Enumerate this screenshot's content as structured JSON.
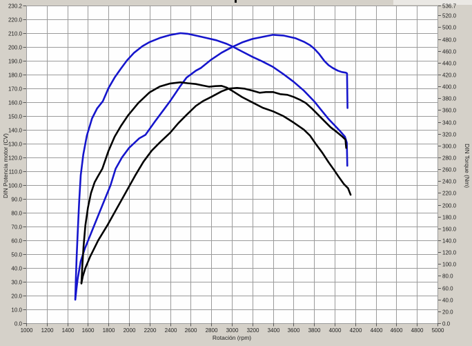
{
  "chart_data": {
    "type": "line",
    "title": "",
    "xlabel": "Rotación (rpm)",
    "ylabel_left": "DIN Potencia motor (CV)",
    "ylabel_right": "DIN Torque (Nm)",
    "x_range": [
      1000,
      5000
    ],
    "x_ticks": [
      1000,
      1200,
      1400,
      1600,
      1800,
      2000,
      2200,
      2400,
      2600,
      2800,
      3000,
      3200,
      3400,
      3600,
      3800,
      4000,
      4200,
      4400,
      4600,
      4800,
      5000
    ],
    "y_left_range": [
      0,
      230.2
    ],
    "y_left_ticks": [
      230.2,
      220,
      210,
      200,
      190,
      180,
      170,
      160,
      150,
      140,
      130,
      120,
      110,
      100,
      90,
      80,
      70,
      60,
      50,
      40,
      30,
      20,
      10,
      0
    ],
    "y_right_range": [
      0,
      536.7
    ],
    "y_right_ticks": [
      536.7,
      520,
      500,
      480,
      460,
      440,
      420,
      400,
      380,
      360,
      340,
      320,
      300,
      280,
      260,
      240,
      220,
      200,
      180,
      160,
      140,
      120,
      100,
      80,
      60,
      40,
      20,
      0
    ],
    "grid": true,
    "legend": "none",
    "colors": {
      "blue_run": "#1515cc",
      "black_run": "#000000",
      "grid": "#9a9a9a",
      "plot_bg": "#fefefe",
      "frame_bg": "#d5d1c9",
      "label": "#1f1f1f"
    },
    "series": [
      {
        "name": "blue-power",
        "axis": "left",
        "unit": "CV",
        "color": "#1515cc",
        "peak": {
          "rpm": 3400,
          "value": 209
        },
        "points": [
          [
            1477,
            17
          ],
          [
            1487,
            24
          ],
          [
            1500,
            32
          ],
          [
            1530,
            45
          ],
          [
            1570,
            54
          ],
          [
            1640,
            67
          ],
          [
            1700,
            78
          ],
          [
            1760,
            89
          ],
          [
            1820,
            100
          ],
          [
            1870,
            112
          ],
          [
            1930,
            120
          ],
          [
            2000,
            127
          ],
          [
            2100,
            134
          ],
          [
            2160,
            136.5
          ],
          [
            2250,
            146
          ],
          [
            2340,
            155
          ],
          [
            2400,
            161
          ],
          [
            2500,
            172
          ],
          [
            2560,
            178
          ],
          [
            2650,
            183
          ],
          [
            2700,
            185
          ],
          [
            2800,
            191
          ],
          [
            2900,
            196
          ],
          [
            3000,
            200
          ],
          [
            3100,
            203.5
          ],
          [
            3200,
            206
          ],
          [
            3300,
            207.5
          ],
          [
            3400,
            209
          ],
          [
            3500,
            208.5
          ],
          [
            3560,
            207.5
          ],
          [
            3620,
            206.5
          ],
          [
            3700,
            204
          ],
          [
            3760,
            201.5
          ],
          [
            3800,
            199
          ],
          [
            3850,
            195
          ],
          [
            3900,
            190
          ],
          [
            3940,
            187
          ],
          [
            3980,
            185
          ],
          [
            4030,
            183
          ],
          [
            4070,
            182
          ],
          [
            4110,
            181.5
          ],
          [
            4120,
            181
          ],
          [
            4125,
            156
          ]
        ]
      },
      {
        "name": "blue-torque",
        "axis": "right",
        "unit": "Nm",
        "color": "#1515cc",
        "peak": {
          "rpm": 2500,
          "value": 490
        },
        "points": [
          [
            1477,
            41
          ],
          [
            1482,
            70
          ],
          [
            1490,
            110
          ],
          [
            1500,
            150
          ],
          [
            1515,
            205
          ],
          [
            1530,
            250
          ],
          [
            1555,
            285
          ],
          [
            1590,
            317
          ],
          [
            1640,
            346
          ],
          [
            1690,
            363
          ],
          [
            1745,
            375
          ],
          [
            1800,
            397
          ],
          [
            1860,
            415
          ],
          [
            1920,
            430
          ],
          [
            1980,
            444
          ],
          [
            2050,
            457
          ],
          [
            2130,
            468
          ],
          [
            2200,
            475
          ],
          [
            2300,
            482
          ],
          [
            2400,
            487
          ],
          [
            2500,
            490
          ],
          [
            2570,
            489
          ],
          [
            2650,
            486
          ],
          [
            2750,
            482
          ],
          [
            2850,
            478
          ],
          [
            2950,
            472
          ],
          [
            3000,
            468
          ],
          [
            3100,
            459
          ],
          [
            3200,
            450
          ],
          [
            3300,
            442
          ],
          [
            3400,
            433
          ],
          [
            3500,
            421
          ],
          [
            3600,
            408
          ],
          [
            3700,
            393
          ],
          [
            3800,
            375
          ],
          [
            3870,
            360
          ],
          [
            3940,
            345
          ],
          [
            3990,
            336
          ],
          [
            4050,
            325
          ],
          [
            4100,
            315
          ],
          [
            4118,
            305
          ],
          [
            4123,
            266
          ]
        ]
      },
      {
        "name": "black-power",
        "axis": "left",
        "unit": "CV",
        "color": "#000000",
        "peak": {
          "rpm": 3050,
          "value": 170.5
        },
        "points": [
          [
            1537,
            29
          ],
          [
            1550,
            34
          ],
          [
            1575,
            40
          ],
          [
            1620,
            48
          ],
          [
            1700,
            60
          ],
          [
            1790,
            71
          ],
          [
            1880,
            83
          ],
          [
            1970,
            95
          ],
          [
            2060,
            107
          ],
          [
            2140,
            117
          ],
          [
            2220,
            125
          ],
          [
            2300,
            131
          ],
          [
            2400,
            138
          ],
          [
            2480,
            145
          ],
          [
            2560,
            151
          ],
          [
            2650,
            157.5
          ],
          [
            2720,
            161
          ],
          [
            2800,
            164
          ],
          [
            2900,
            168
          ],
          [
            2970,
            170
          ],
          [
            3050,
            170.5
          ],
          [
            3120,
            170
          ],
          [
            3200,
            168.5
          ],
          [
            3270,
            167
          ],
          [
            3330,
            167.5
          ],
          [
            3400,
            167.5
          ],
          [
            3470,
            166
          ],
          [
            3540,
            165.5
          ],
          [
            3600,
            164
          ],
          [
            3660,
            162
          ],
          [
            3720,
            159.5
          ],
          [
            3780,
            155.5
          ],
          [
            3840,
            151
          ],
          [
            3900,
            146.5
          ],
          [
            3960,
            142
          ],
          [
            4020,
            138.5
          ],
          [
            4070,
            135.5
          ],
          [
            4105,
            133
          ],
          [
            4112,
            127
          ]
        ]
      },
      {
        "name": "black-torque",
        "axis": "right",
        "unit": "Nm",
        "color": "#000000",
        "peak": {
          "rpm": 2500,
          "value": 407
        },
        "points": [
          [
            1537,
            67
          ],
          [
            1545,
            95
          ],
          [
            1558,
            130
          ],
          [
            1575,
            165
          ],
          [
            1600,
            195
          ],
          [
            1630,
            220
          ],
          [
            1665,
            238
          ],
          [
            1700,
            249
          ],
          [
            1740,
            261
          ],
          [
            1800,
            291
          ],
          [
            1860,
            315
          ],
          [
            1920,
            333
          ],
          [
            1990,
            351
          ],
          [
            2090,
            372
          ],
          [
            2200,
            390
          ],
          [
            2300,
            400
          ],
          [
            2400,
            405
          ],
          [
            2500,
            407
          ],
          [
            2570,
            405.5
          ],
          [
            2650,
            404
          ],
          [
            2720,
            401.5
          ],
          [
            2780,
            399.5
          ],
          [
            2840,
            400.5
          ],
          [
            2900,
            401
          ],
          [
            2950,
            398
          ],
          [
            3000,
            393
          ],
          [
            3100,
            382
          ],
          [
            3200,
            373
          ],
          [
            3300,
            364
          ],
          [
            3400,
            358
          ],
          [
            3500,
            350
          ],
          [
            3600,
            339
          ],
          [
            3700,
            327
          ],
          [
            3760,
            317
          ],
          [
            3820,
            302
          ],
          [
            3880,
            288
          ],
          [
            3940,
            272
          ],
          [
            3990,
            260
          ],
          [
            4040,
            247
          ],
          [
            4090,
            235
          ],
          [
            4130,
            228
          ],
          [
            4155,
            217
          ]
        ]
      }
    ]
  }
}
